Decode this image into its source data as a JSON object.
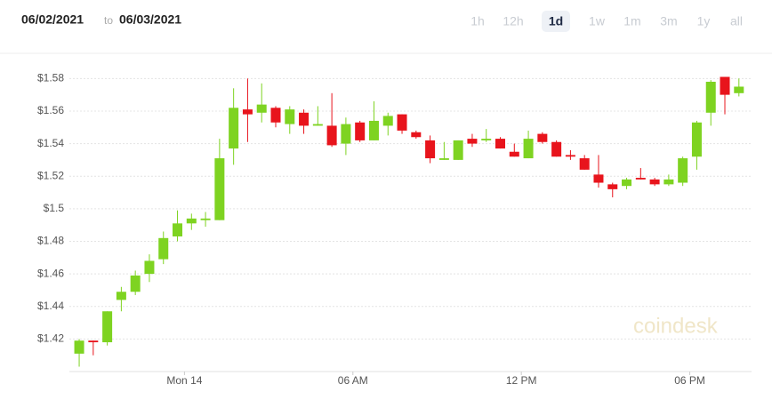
{
  "header": {
    "date_from": "06/02/2021",
    "date_sep": "to",
    "date_to": "06/03/2021",
    "ranges": [
      "1h",
      "12h",
      "1d",
      "1w",
      "1m",
      "3m",
      "1y",
      "all"
    ],
    "active_range": "1d"
  },
  "chart_data": {
    "type": "candlestick",
    "watermark": "coindesk",
    "x": [
      -3.75,
      -3.25,
      -2.75,
      -2.25,
      -1.75,
      -1.25,
      -0.75,
      -0.25,
      0.25,
      0.75,
      1.25,
      1.75,
      2.25,
      2.75,
      3.25,
      3.75,
      4.25,
      4.75,
      5.25,
      5.75,
      6.25,
      6.75,
      7.25,
      7.75,
      8.25,
      8.75,
      9.25,
      9.75,
      10.25,
      10.75,
      11.25,
      11.75,
      12.25,
      12.75,
      13.25,
      13.75,
      14.25,
      14.75,
      15.25,
      15.75,
      16.25,
      16.75,
      17.25,
      17.75,
      18.25,
      18.75,
      19.25,
      19.75
    ],
    "open": [
      1.411,
      1.419,
      1.418,
      1.444,
      1.449,
      1.46,
      1.469,
      1.483,
      1.491,
      1.493,
      1.493,
      1.537,
      1.561,
      1.559,
      1.562,
      1.552,
      1.559,
      1.551,
      1.551,
      1.54,
      1.553,
      1.542,
      1.551,
      1.558,
      1.547,
      1.542,
      1.53,
      1.53,
      1.543,
      1.542,
      1.543,
      1.535,
      1.531,
      1.546,
      1.541,
      1.533,
      1.531,
      1.521,
      1.515,
      1.514,
      1.519,
      1.518,
      1.515,
      1.516,
      1.532,
      1.559,
      1.581,
      1.571
    ],
    "high": [
      1.42,
      1.419,
      1.437,
      1.452,
      1.462,
      1.472,
      1.486,
      1.499,
      1.497,
      1.498,
      1.543,
      1.574,
      1.58,
      1.577,
      1.563,
      1.563,
      1.561,
      1.563,
      1.571,
      1.556,
      1.554,
      1.566,
      1.559,
      1.558,
      1.548,
      1.545,
      1.541,
      1.542,
      1.546,
      1.549,
      1.544,
      1.54,
      1.548,
      1.547,
      1.542,
      1.536,
      1.533,
      1.533,
      1.516,
      1.519,
      1.525,
      1.519,
      1.521,
      1.532,
      1.554,
      1.579,
      1.581,
      1.58
    ],
    "low": [
      1.403,
      1.41,
      1.416,
      1.437,
      1.447,
      1.455,
      1.466,
      1.48,
      1.487,
      1.489,
      1.493,
      1.527,
      1.541,
      1.553,
      1.55,
      1.546,
      1.546,
      1.551,
      1.538,
      1.533,
      1.541,
      1.542,
      1.545,
      1.546,
      1.543,
      1.528,
      1.53,
      1.53,
      1.538,
      1.541,
      1.537,
      1.532,
      1.531,
      1.54,
      1.532,
      1.53,
      1.524,
      1.513,
      1.507,
      1.512,
      1.518,
      1.514,
      1.514,
      1.514,
      1.524,
      1.551,
      1.558,
      1.569
    ],
    "close": [
      1.419,
      1.418,
      1.437,
      1.449,
      1.459,
      1.468,
      1.482,
      1.491,
      1.494,
      1.494,
      1.531,
      1.562,
      1.558,
      1.564,
      1.553,
      1.561,
      1.551,
      1.552,
      1.539,
      1.552,
      1.542,
      1.554,
      1.557,
      1.548,
      1.544,
      1.531,
      1.531,
      1.542,
      1.54,
      1.543,
      1.537,
      1.532,
      1.543,
      1.541,
      1.532,
      1.532,
      1.524,
      1.516,
      1.512,
      1.518,
      1.518,
      1.515,
      1.518,
      1.531,
      1.553,
      1.578,
      1.57,
      1.575
    ],
    "up_color": "#7ed321",
    "down_color": "#e8141c",
    "xlim": [
      -4.1,
      20.2
    ],
    "xticks": [
      {
        "value": 0,
        "label": "Mon 14"
      },
      {
        "value": 6,
        "label": "06 AM"
      },
      {
        "value": 12,
        "label": "12 PM"
      },
      {
        "value": 18,
        "label": "06 PM"
      }
    ],
    "ylim": [
      1.4,
      1.59
    ],
    "yticks": [
      {
        "value": 1.42,
        "label": "$1.42"
      },
      {
        "value": 1.44,
        "label": "$1.44"
      },
      {
        "value": 1.46,
        "label": "$1.46"
      },
      {
        "value": 1.48,
        "label": "$1.48"
      },
      {
        "value": 1.5,
        "label": "$1.5"
      },
      {
        "value": 1.52,
        "label": "$1.52"
      },
      {
        "value": 1.54,
        "label": "$1.54"
      },
      {
        "value": 1.56,
        "label": "$1.56"
      },
      {
        "value": 1.58,
        "label": "$1.58"
      }
    ],
    "grid": true
  }
}
